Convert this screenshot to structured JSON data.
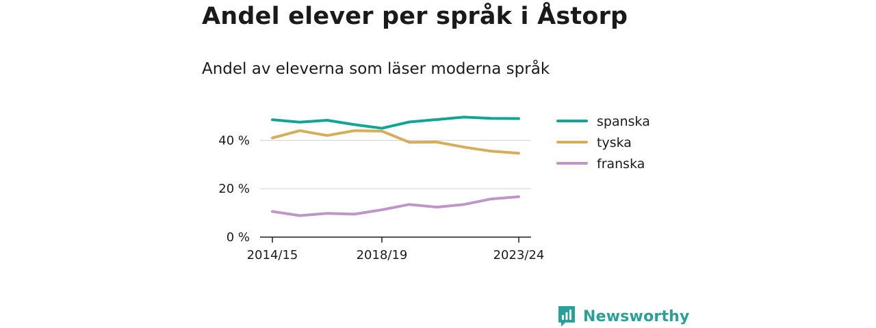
{
  "title": "Andel elever per språk i Åstorp",
  "subtitle": "Andel av eleverna som läser moderna språk",
  "brand": {
    "name": "Newsworthy",
    "icon": "newsworthy-logo-icon",
    "color": "#2aa198"
  },
  "chart_data": {
    "type": "line",
    "x": [
      "2014/15",
      "2015/16",
      "2016/17",
      "2017/18",
      "2018/19",
      "2019/20",
      "2020/21",
      "2021/22",
      "2022/23",
      "2023/24"
    ],
    "x_tick_labels": [
      "2014/15",
      "2018/19",
      "2023/24"
    ],
    "y_ticks": [
      {
        "value": 0,
        "label": "0 %"
      },
      {
        "value": 20,
        "label": "20 %"
      },
      {
        "value": 40,
        "label": "40 %"
      }
    ],
    "ylim": [
      0,
      50
    ],
    "grid": true,
    "legend_position": "right",
    "series": [
      {
        "name": "spanska",
        "color": "#12a594",
        "values": [
          48.5,
          47.5,
          48.3,
          46.5,
          45.0,
          47.6,
          48.6,
          49.6,
          49.1,
          49.0
        ]
      },
      {
        "name": "tyska",
        "color": "#d4ae5a",
        "values": [
          41.0,
          44.0,
          42.0,
          44.0,
          43.8,
          39.2,
          39.3,
          37.2,
          35.5,
          34.7
        ]
      },
      {
        "name": "franska",
        "color": "#bf96c8",
        "values": [
          10.6,
          8.9,
          9.8,
          9.5,
          11.3,
          13.5,
          12.4,
          13.5,
          15.8,
          16.7
        ]
      }
    ]
  }
}
